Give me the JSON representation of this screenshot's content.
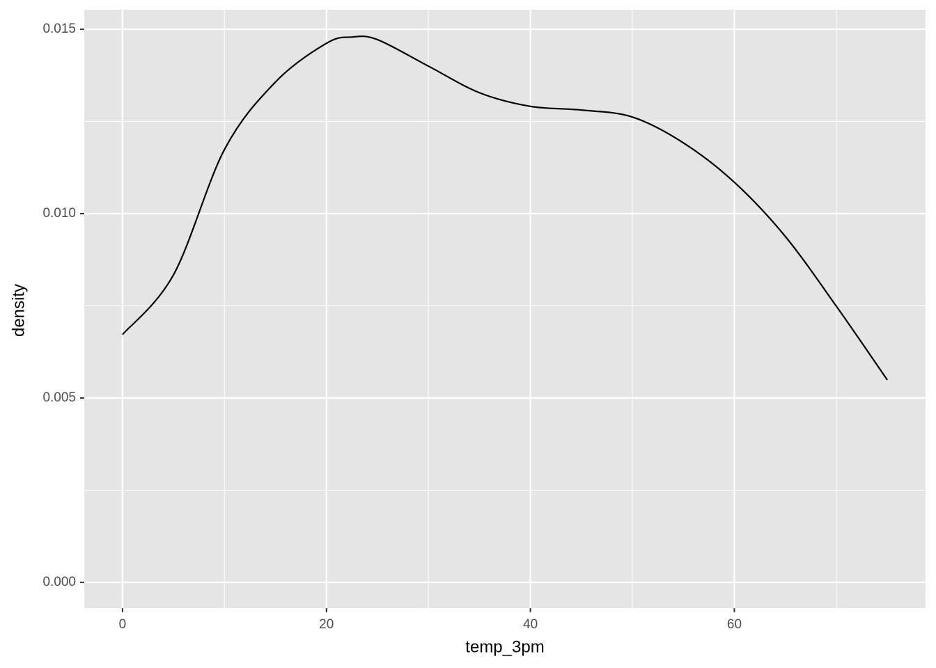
{
  "chart_data": {
    "type": "line",
    "x_label": "temp_3pm",
    "y_label": "density",
    "x": [
      0,
      5,
      10,
      15,
      20,
      22.5,
      25,
      30,
      35,
      40,
      45,
      50,
      55,
      60,
      65,
      70,
      75
    ],
    "series": [
      {
        "color": "#000000",
        "values": [
          0.00672,
          0.00834,
          0.01174,
          0.01357,
          0.01462,
          0.01479,
          0.01472,
          0.014,
          0.01328,
          0.01291,
          0.01281,
          0.01262,
          0.01192,
          0.01085,
          0.00938,
          0.00749,
          0.00549
        ]
      }
    ],
    "xlim": [
      -3.75,
      78.75
    ],
    "xticks": [
      0,
      20,
      40,
      60
    ],
    "ylim": [
      -0.0007,
      0.01553
    ],
    "yticks": [
      {
        "value": 0,
        "label": "0.000"
      },
      0.005,
      {
        "value": 0.01,
        "label": "0.010"
      },
      0.015
    ],
    "grid": true,
    "panel_color": "#e5e5e5"
  }
}
